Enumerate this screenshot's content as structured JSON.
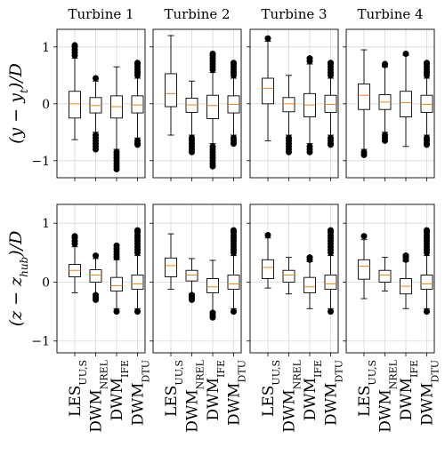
{
  "chart_data": [
    {
      "type": "box",
      "title": "Turbine 1",
      "ylabel": [
        "(y − y",
        "t",
        ")/D"
      ],
      "ylim": [
        -1.3,
        1.31
      ],
      "yticks": [
        {
          "value": -1,
          "label": "−1"
        },
        0,
        1
      ],
      "grid": true,
      "box_color": "#000000",
      "median_color": "#ff7f0e",
      "boxes": [
        {
          "whislo": -0.63,
          "q1": -0.25,
          "med": 0,
          "q3": 0.22,
          "whishi": 0.8,
          "fliers": [
            0.85,
            0.9,
            0.95,
            1.0,
            1.03
          ]
        },
        {
          "whislo": -0.5,
          "q1": -0.16,
          "med": -0.03,
          "q3": 0.11,
          "whishi": 0.4,
          "fliers": [
            0.45,
            -0.55,
            -0.6,
            -0.65,
            -0.7,
            -0.75,
            -0.8
          ]
        },
        {
          "whislo": -0.8,
          "q1": -0.25,
          "med": -0.05,
          "q3": 0.14,
          "whishi": 0.65,
          "fliers": [
            -0.85,
            -0.9,
            -0.95,
            -1.0,
            -1.05,
            -1.1,
            -1.15
          ]
        },
        {
          "whislo": -0.6,
          "q1": -0.16,
          "med": -0.02,
          "q3": 0.14,
          "whishi": 0.45,
          "fliers": [
            0.5,
            0.55,
            0.6,
            0.65,
            0.7,
            0.72,
            -0.65,
            -0.7,
            -0.72
          ]
        }
      ]
    },
    {
      "type": "box",
      "title": "Turbine 2",
      "ylim": [
        -1.3,
        1.31
      ],
      "yticks": [
        -1,
        0,
        1
      ],
      "grid": true,
      "box_color": "#000000",
      "median_color": "#ff7f0e",
      "boxes": [
        {
          "whislo": -0.55,
          "q1": -0.05,
          "med": 0.18,
          "q3": 0.53,
          "whishi": 1.2,
          "fliers": []
        },
        {
          "whislo": -0.55,
          "q1": -0.15,
          "med": -0.02,
          "q3": 0.1,
          "whishi": 0.4,
          "fliers": [
            -0.6,
            -0.65,
            -0.7,
            -0.75,
            -0.8,
            -0.85
          ]
        },
        {
          "whislo": -0.7,
          "q1": -0.26,
          "med": -0.03,
          "q3": 0.15,
          "whishi": 0.55,
          "fliers": [
            0.6,
            0.65,
            0.7,
            0.75,
            0.8,
            0.85,
            0.88,
            -0.75,
            -0.8,
            -0.85,
            -0.9,
            -0.95,
            -1.0,
            -1.05,
            -1.1
          ]
        },
        {
          "whislo": -0.55,
          "q1": -0.16,
          "med": -0.01,
          "q3": 0.14,
          "whishi": 0.45,
          "fliers": [
            0.5,
            0.55,
            0.6,
            0.65,
            0.7,
            0.72,
            -0.6,
            -0.65,
            -0.7
          ]
        }
      ]
    },
    {
      "type": "box",
      "title": "Turbine 3",
      "ylim": [
        -1.3,
        1.31
      ],
      "yticks": [
        -1,
        0,
        1
      ],
      "grid": true,
      "box_color": "#000000",
      "median_color": "#ff7f0e",
      "boxes": [
        {
          "whislo": -0.65,
          "q1": 0.0,
          "med": 0.27,
          "q3": 0.45,
          "whishi": 1.1,
          "fliers": [
            1.15
          ]
        },
        {
          "whislo": -0.55,
          "q1": -0.14,
          "med": 0,
          "q3": 0.11,
          "whishi": 0.5,
          "fliers": [
            -0.6,
            -0.65,
            -0.7,
            -0.75,
            -0.8,
            -0.85
          ]
        },
        {
          "whislo": -0.7,
          "q1": -0.23,
          "med": -0.02,
          "q3": 0.18,
          "whishi": 0.7,
          "fliers": [
            0.75,
            0.8,
            -0.75,
            -0.8,
            -0.85
          ]
        },
        {
          "whislo": -0.55,
          "q1": -0.15,
          "med": -0.01,
          "q3": 0.15,
          "whishi": 0.45,
          "fliers": [
            0.5,
            0.55,
            0.6,
            0.65,
            0.7,
            0.72,
            -0.6,
            -0.65,
            -0.7,
            -0.72
          ]
        }
      ]
    },
    {
      "type": "box",
      "title": "Turbine 4",
      "ylim": [
        -1.3,
        1.31
      ],
      "yticks": [
        -1,
        0,
        1
      ],
      "grid": true,
      "box_color": "#000000",
      "median_color": "#ff7f0e",
      "boxes": [
        {
          "whislo": -0.8,
          "q1": -0.1,
          "med": 0.15,
          "q3": 0.35,
          "whishi": 0.95,
          "fliers": [
            -0.85,
            -0.9
          ]
        },
        {
          "whislo": -0.5,
          "q1": -0.1,
          "med": 0.03,
          "q3": 0.16,
          "whishi": 0.65,
          "fliers": [
            0.68,
            0.7,
            -0.55,
            -0.6,
            -0.65
          ]
        },
        {
          "whislo": -0.75,
          "q1": -0.23,
          "med": 0.02,
          "q3": 0.22,
          "whishi": 0.85,
          "fliers": [
            0.88
          ]
        },
        {
          "whislo": -0.55,
          "q1": -0.15,
          "med": -0.01,
          "q3": 0.15,
          "whishi": 0.45,
          "fliers": [
            0.5,
            0.55,
            0.6,
            0.65,
            0.7,
            0.72,
            -0.6,
            -0.65,
            -0.7,
            -0.72
          ]
        }
      ]
    },
    {
      "type": "box",
      "ylabel": [
        "(z − z",
        "hub",
        ")/D"
      ],
      "categories": [
        [
          "LES",
          "UU,S"
        ],
        [
          "DWM",
          "NREL"
        ],
        [
          "DWM",
          "IFE"
        ],
        [
          "DWM",
          "DTU"
        ]
      ],
      "ylim": [
        -1.2,
        1.32
      ],
      "yticks": [
        {
          "value": -1,
          "label": "−1"
        },
        0,
        1
      ],
      "grid": true,
      "box_color": "#000000",
      "median_color": "#ff7f0e",
      "boxes": [
        {
          "whislo": -0.18,
          "q1": 0.09,
          "med": 0.2,
          "q3": 0.3,
          "whishi": 0.6,
          "fliers": [
            0.65,
            0.7,
            0.75,
            0.78
          ]
        },
        {
          "whislo": -0.2,
          "q1": 0.0,
          "med": 0.12,
          "q3": 0.21,
          "whishi": 0.4,
          "fliers": [
            0.45,
            -0.22,
            -0.26,
            -0.3
          ]
        },
        {
          "whislo": -0.45,
          "q1": -0.15,
          "med": -0.06,
          "q3": 0.08,
          "whishi": 0.38,
          "fliers": [
            0.42,
            0.47,
            0.52,
            0.57,
            0.62,
            -0.5
          ]
        },
        {
          "whislo": -0.45,
          "q1": -0.12,
          "med": -0.03,
          "q3": 0.12,
          "whishi": 0.45,
          "fliers": [
            0.5,
            0.55,
            0.6,
            0.65,
            0.7,
            0.75,
            0.8,
            0.85,
            0.88,
            -0.5
          ]
        }
      ]
    },
    {
      "type": "box",
      "categories": [
        [
          "LES",
          "UU,S"
        ],
        [
          "DWM",
          "NREL"
        ],
        [
          "DWM",
          "IFE"
        ],
        [
          "DWM",
          "DTU"
        ]
      ],
      "ylim": [
        -1.2,
        1.32
      ],
      "yticks": [
        -1,
        0,
        1
      ],
      "grid": true,
      "box_color": "#000000",
      "median_color": "#ff7f0e",
      "boxes": [
        {
          "whislo": -0.12,
          "q1": 0.09,
          "med": 0.28,
          "q3": 0.41,
          "whishi": 0.82,
          "fliers": []
        },
        {
          "whislo": -0.2,
          "q1": 0.02,
          "med": 0.12,
          "q3": 0.2,
          "whishi": 0.4,
          "fliers": [
            -0.22,
            -0.26,
            -0.3
          ]
        },
        {
          "whislo": -0.5,
          "q1": -0.18,
          "med": -0.08,
          "q3": 0.06,
          "whishi": 0.37,
          "fliers": [
            -0.52,
            -0.56,
            -0.6
          ]
        },
        {
          "whislo": -0.45,
          "q1": -0.12,
          "med": -0.03,
          "q3": 0.12,
          "whishi": 0.45,
          "fliers": [
            0.5,
            0.55,
            0.6,
            0.65,
            0.7,
            0.75,
            0.8,
            0.85,
            0.88,
            -0.5
          ]
        }
      ]
    },
    {
      "type": "box",
      "categories": [
        [
          "LES",
          "UU,S"
        ],
        [
          "DWM",
          "NREL"
        ],
        [
          "DWM",
          "IFE"
        ],
        [
          "DWM",
          "DTU"
        ]
      ],
      "ylim": [
        -1.2,
        1.32
      ],
      "yticks": [
        -1,
        0,
        1
      ],
      "grid": true,
      "box_color": "#000000",
      "median_color": "#ff7f0e",
      "boxes": [
        {
          "whislo": -0.1,
          "q1": 0.06,
          "med": 0.25,
          "q3": 0.38,
          "whishi": 0.75,
          "fliers": [
            0.8
          ]
        },
        {
          "whislo": -0.2,
          "q1": 0.0,
          "med": 0.12,
          "q3": 0.2,
          "whishi": 0.42,
          "fliers": []
        },
        {
          "whislo": -0.45,
          "q1": -0.18,
          "med": -0.08,
          "q3": 0.08,
          "whishi": 0.35,
          "fliers": [
            0.38,
            0.42
          ]
        },
        {
          "whislo": -0.45,
          "q1": -0.12,
          "med": -0.03,
          "q3": 0.12,
          "whishi": 0.45,
          "fliers": [
            0.5,
            0.55,
            0.6,
            0.65,
            0.7,
            0.75,
            0.8,
            0.85,
            0.88,
            -0.5
          ]
        }
      ]
    },
    {
      "type": "box",
      "categories": [
        [
          "LES",
          "UU,S"
        ],
        [
          "DWM",
          "NREL"
        ],
        [
          "DWM",
          "IFE"
        ],
        [
          "DWM",
          "DTU"
        ]
      ],
      "ylim": [
        -1.2,
        1.32
      ],
      "yticks": [
        -1,
        0,
        1
      ],
      "grid": true,
      "box_color": "#000000",
      "median_color": "#ff7f0e",
      "boxes": [
        {
          "whislo": -0.28,
          "q1": 0.05,
          "med": 0.27,
          "q3": 0.38,
          "whishi": 0.72,
          "fliers": [
            0.78
          ]
        },
        {
          "whislo": -0.15,
          "q1": 0.0,
          "med": 0.12,
          "q3": 0.2,
          "whishi": 0.42,
          "fliers": []
        },
        {
          "whislo": -0.45,
          "q1": -0.2,
          "med": -0.07,
          "q3": 0.06,
          "whishi": 0.35,
          "fliers": [
            0.38,
            0.42,
            0.45
          ]
        },
        {
          "whislo": -0.45,
          "q1": -0.12,
          "med": -0.03,
          "q3": 0.12,
          "whishi": 0.45,
          "fliers": [
            0.5,
            0.55,
            0.6,
            0.65,
            0.7,
            0.75,
            0.8,
            0.85,
            0.88,
            -0.5
          ]
        }
      ]
    }
  ]
}
